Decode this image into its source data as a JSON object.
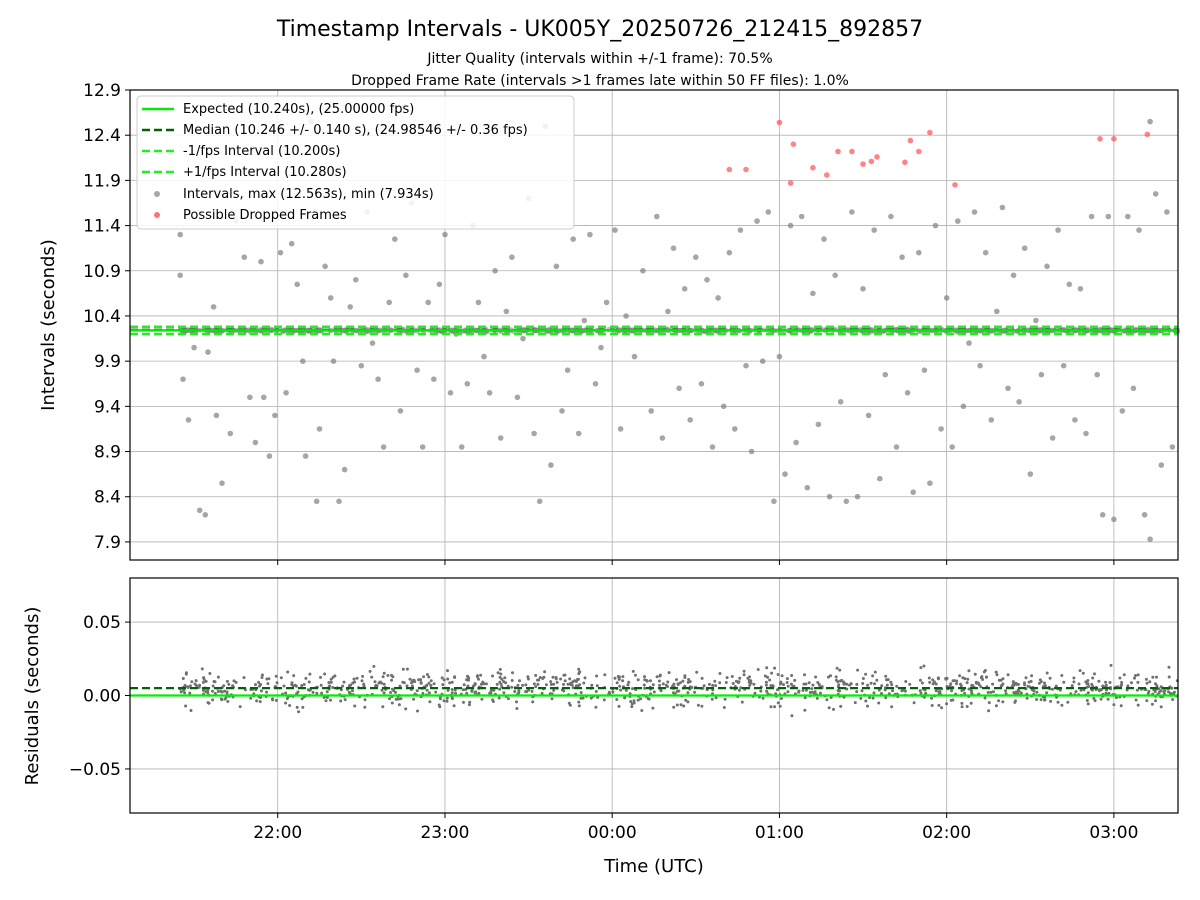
{
  "chart_data": [
    {
      "type": "scatter",
      "title": "Timestamp Intervals - UK005Y_20250726_212415_892857",
      "subtitles": [
        "Jitter Quality (intervals within +/-1 frame): 70.5%",
        "Dropped Frame Rate (intervals >1 frames late within 50 FF files): 1.0%"
      ],
      "ylabel": "Intervals (seconds)",
      "xlabel": "",
      "xlim": [
        "21:07",
        "03:23"
      ],
      "ylim": [
        7.7,
        12.9
      ],
      "yticks": [
        "7.9",
        "8.4",
        "8.9",
        "9.4",
        "9.9",
        "10.4",
        "10.9",
        "11.4",
        "11.9",
        "12.4",
        "12.9"
      ],
      "xticks": [
        "22:00",
        "23:00",
        "00:00",
        "01:00",
        "02:00",
        "03:00"
      ],
      "grid": true,
      "legend_position": "upper-left",
      "legend": [
        "Expected (10.240s), (25.00000 fps)",
        "Median (10.246 +/- 0.140 s), (24.98546 +/- 0.36 fps)",
        "-1/fps Interval (10.200s)",
        "+1/fps Interval (10.280s)",
        "Intervals, max (12.563s), min (7.934s)",
        "Possible Dropped Frames"
      ],
      "reference_lines": {
        "expected": 10.24,
        "median": 10.246,
        "minus_one_frame": 10.2,
        "plus_one_frame": 10.28
      },
      "series": [
        {
          "name": "Intervals, max (12.563s), min (7.934s)",
          "color": "#808080",
          "points": [
            {
              "x": "21:25",
              "y": 10.85
            },
            {
              "x": "21:25",
              "y": 11.3
            },
            {
              "x": "21:26",
              "y": 9.7
            },
            {
              "x": "21:28",
              "y": 9.25
            },
            {
              "x": "21:30",
              "y": 10.05
            },
            {
              "x": "21:32",
              "y": 8.25
            },
            {
              "x": "21:34",
              "y": 8.2
            },
            {
              "x": "21:35",
              "y": 10.0
            },
            {
              "x": "21:37",
              "y": 10.5
            },
            {
              "x": "21:38",
              "y": 9.3
            },
            {
              "x": "21:40",
              "y": 8.55
            },
            {
              "x": "21:43",
              "y": 9.1
            },
            {
              "x": "21:45",
              "y": 11.45
            },
            {
              "x": "21:48",
              "y": 11.05
            },
            {
              "x": "21:50",
              "y": 9.5
            },
            {
              "x": "21:52",
              "y": 9.0
            },
            {
              "x": "21:54",
              "y": 11.0
            },
            {
              "x": "21:55",
              "y": 9.5
            },
            {
              "x": "21:57",
              "y": 8.85
            },
            {
              "x": "21:59",
              "y": 9.3
            },
            {
              "x": "22:01",
              "y": 11.1
            },
            {
              "x": "22:03",
              "y": 9.55
            },
            {
              "x": "22:05",
              "y": 11.2
            },
            {
              "x": "22:07",
              "y": 10.75
            },
            {
              "x": "22:09",
              "y": 9.9
            },
            {
              "x": "22:10",
              "y": 8.85
            },
            {
              "x": "22:12",
              "y": 12.55
            },
            {
              "x": "22:14",
              "y": 8.35
            },
            {
              "x": "22:15",
              "y": 9.15
            },
            {
              "x": "22:17",
              "y": 10.95
            },
            {
              "x": "22:19",
              "y": 10.6
            },
            {
              "x": "22:20",
              "y": 9.9
            },
            {
              "x": "22:22",
              "y": 8.35
            },
            {
              "x": "22:24",
              "y": 8.7
            },
            {
              "x": "22:26",
              "y": 10.5
            },
            {
              "x": "22:28",
              "y": 10.8
            },
            {
              "x": "22:30",
              "y": 9.85
            },
            {
              "x": "22:32",
              "y": 11.55
            },
            {
              "x": "22:34",
              "y": 10.1
            },
            {
              "x": "22:36",
              "y": 9.7
            },
            {
              "x": "22:38",
              "y": 8.95
            },
            {
              "x": "22:40",
              "y": 10.55
            },
            {
              "x": "22:42",
              "y": 11.25
            },
            {
              "x": "22:44",
              "y": 9.35
            },
            {
              "x": "22:46",
              "y": 10.85
            },
            {
              "x": "22:48",
              "y": 11.65
            },
            {
              "x": "22:50",
              "y": 9.8
            },
            {
              "x": "22:52",
              "y": 8.95
            },
            {
              "x": "22:54",
              "y": 10.55
            },
            {
              "x": "22:56",
              "y": 9.7
            },
            {
              "x": "22:58",
              "y": 10.75
            },
            {
              "x": "23:00",
              "y": 11.3
            },
            {
              "x": "23:02",
              "y": 9.55
            },
            {
              "x": "23:04",
              "y": 10.2
            },
            {
              "x": "23:06",
              "y": 8.95
            },
            {
              "x": "23:08",
              "y": 9.65
            },
            {
              "x": "23:10",
              "y": 11.4
            },
            {
              "x": "23:12",
              "y": 10.55
            },
            {
              "x": "23:14",
              "y": 9.95
            },
            {
              "x": "23:16",
              "y": 9.55
            },
            {
              "x": "23:18",
              "y": 10.9
            },
            {
              "x": "23:20",
              "y": 9.05
            },
            {
              "x": "23:22",
              "y": 10.45
            },
            {
              "x": "23:24",
              "y": 11.05
            },
            {
              "x": "23:26",
              "y": 9.5
            },
            {
              "x": "23:28",
              "y": 10.15
            },
            {
              "x": "23:30",
              "y": 11.7
            },
            {
              "x": "23:32",
              "y": 9.1
            },
            {
              "x": "23:34",
              "y": 8.35
            },
            {
              "x": "23:36",
              "y": 12.5
            },
            {
              "x": "23:38",
              "y": 8.75
            },
            {
              "x": "23:40",
              "y": 10.95
            },
            {
              "x": "23:42",
              "y": 9.35
            },
            {
              "x": "23:44",
              "y": 9.8
            },
            {
              "x": "23:46",
              "y": 11.25
            },
            {
              "x": "23:48",
              "y": 9.1
            },
            {
              "x": "23:50",
              "y": 10.35
            },
            {
              "x": "23:52",
              "y": 11.3
            },
            {
              "x": "23:54",
              "y": 9.65
            },
            {
              "x": "23:56",
              "y": 10.05
            },
            {
              "x": "23:58",
              "y": 10.55
            },
            {
              "x": "00:01",
              "y": 11.35
            },
            {
              "x": "00:03",
              "y": 9.15
            },
            {
              "x": "00:05",
              "y": 10.4
            },
            {
              "x": "00:08",
              "y": 9.95
            },
            {
              "x": "00:11",
              "y": 10.9
            },
            {
              "x": "00:14",
              "y": 9.35
            },
            {
              "x": "00:16",
              "y": 11.5
            },
            {
              "x": "00:18",
              "y": 9.05
            },
            {
              "x": "00:20",
              "y": 10.45
            },
            {
              "x": "00:22",
              "y": 11.15
            },
            {
              "x": "00:24",
              "y": 9.6
            },
            {
              "x": "00:26",
              "y": 10.7
            },
            {
              "x": "00:28",
              "y": 9.25
            },
            {
              "x": "00:30",
              "y": 11.05
            },
            {
              "x": "00:32",
              "y": 9.65
            },
            {
              "x": "00:34",
              "y": 10.8
            },
            {
              "x": "00:36",
              "y": 8.95
            },
            {
              "x": "00:38",
              "y": 10.6
            },
            {
              "x": "00:40",
              "y": 9.4
            },
            {
              "x": "00:42",
              "y": 11.1
            },
            {
              "x": "00:44",
              "y": 9.15
            },
            {
              "x": "00:46",
              "y": 11.35
            },
            {
              "x": "00:48",
              "y": 9.85
            },
            {
              "x": "00:50",
              "y": 8.9
            },
            {
              "x": "00:52",
              "y": 11.45
            },
            {
              "x": "00:54",
              "y": 9.9
            },
            {
              "x": "00:56",
              "y": 11.55
            },
            {
              "x": "00:58",
              "y": 8.35
            },
            {
              "x": "01:00",
              "y": 9.95
            },
            {
              "x": "01:02",
              "y": 8.65
            },
            {
              "x": "01:04",
              "y": 11.4
            },
            {
              "x": "01:06",
              "y": 9.0
            },
            {
              "x": "01:08",
              "y": 11.5
            },
            {
              "x": "01:10",
              "y": 8.5
            },
            {
              "x": "01:12",
              "y": 10.65
            },
            {
              "x": "01:14",
              "y": 9.2
            },
            {
              "x": "01:16",
              "y": 11.25
            },
            {
              "x": "01:18",
              "y": 8.4
            },
            {
              "x": "01:20",
              "y": 10.85
            },
            {
              "x": "01:22",
              "y": 9.45
            },
            {
              "x": "01:24",
              "y": 8.35
            },
            {
              "x": "01:26",
              "y": 11.55
            },
            {
              "x": "01:28",
              "y": 8.4
            },
            {
              "x": "01:30",
              "y": 10.7
            },
            {
              "x": "01:32",
              "y": 9.3
            },
            {
              "x": "01:34",
              "y": 11.35
            },
            {
              "x": "01:36",
              "y": 8.6
            },
            {
              "x": "01:38",
              "y": 9.75
            },
            {
              "x": "01:40",
              "y": 11.5
            },
            {
              "x": "01:42",
              "y": 8.95
            },
            {
              "x": "01:44",
              "y": 11.05
            },
            {
              "x": "01:46",
              "y": 9.55
            },
            {
              "x": "01:48",
              "y": 8.45
            },
            {
              "x": "01:50",
              "y": 11.1
            },
            {
              "x": "01:52",
              "y": 9.8
            },
            {
              "x": "01:54",
              "y": 8.55
            },
            {
              "x": "01:56",
              "y": 11.4
            },
            {
              "x": "01:58",
              "y": 9.15
            },
            {
              "x": "02:00",
              "y": 10.6
            },
            {
              "x": "02:02",
              "y": 8.95
            },
            {
              "x": "02:04",
              "y": 11.45
            },
            {
              "x": "02:06",
              "y": 9.4
            },
            {
              "x": "02:08",
              "y": 10.1
            },
            {
              "x": "02:10",
              "y": 11.55
            },
            {
              "x": "02:12",
              "y": 9.85
            },
            {
              "x": "02:14",
              "y": 11.1
            },
            {
              "x": "02:16",
              "y": 9.25
            },
            {
              "x": "02:18",
              "y": 10.45
            },
            {
              "x": "02:20",
              "y": 11.6
            },
            {
              "x": "02:22",
              "y": 9.6
            },
            {
              "x": "02:24",
              "y": 10.85
            },
            {
              "x": "02:26",
              "y": 9.45
            },
            {
              "x": "02:28",
              "y": 11.15
            },
            {
              "x": "02:30",
              "y": 8.65
            },
            {
              "x": "02:32",
              "y": 10.35
            },
            {
              "x": "02:34",
              "y": 9.75
            },
            {
              "x": "02:36",
              "y": 10.95
            },
            {
              "x": "02:38",
              "y": 9.05
            },
            {
              "x": "02:40",
              "y": 11.35
            },
            {
              "x": "02:42",
              "y": 9.85
            },
            {
              "x": "02:44",
              "y": 10.75
            },
            {
              "x": "02:46",
              "y": 9.25
            },
            {
              "x": "02:48",
              "y": 10.7
            },
            {
              "x": "02:50",
              "y": 9.1
            },
            {
              "x": "02:52",
              "y": 11.5
            },
            {
              "x": "02:54",
              "y": 9.75
            },
            {
              "x": "02:56",
              "y": 8.2
            },
            {
              "x": "02:58",
              "y": 11.5
            },
            {
              "x": "03:00",
              "y": 8.15
            },
            {
              "x": "03:03",
              "y": 9.35
            },
            {
              "x": "03:05",
              "y": 11.5
            },
            {
              "x": "03:07",
              "y": 9.6
            },
            {
              "x": "03:09",
              "y": 11.35
            },
            {
              "x": "03:11",
              "y": 8.2
            },
            {
              "x": "03:13",
              "y": 12.55
            },
            {
              "x": "03:15",
              "y": 11.75
            },
            {
              "x": "03:17",
              "y": 8.75
            },
            {
              "x": "03:19",
              "y": 11.55
            },
            {
              "x": "03:21",
              "y": 8.95
            },
            {
              "x": "03:13",
              "y": 7.93
            }
          ]
        },
        {
          "name": "Possible Dropped Frames",
          "color": "#ff5050",
          "points": [
            {
              "x": "00:42",
              "y": 12.02
            },
            {
              "x": "00:48",
              "y": 12.02
            },
            {
              "x": "01:00",
              "y": 12.54
            },
            {
              "x": "01:04",
              "y": 11.87
            },
            {
              "x": "01:05",
              "y": 12.3
            },
            {
              "x": "01:12",
              "y": 12.04
            },
            {
              "x": "01:17",
              "y": 11.96
            },
            {
              "x": "01:21",
              "y": 12.22
            },
            {
              "x": "01:26",
              "y": 12.22
            },
            {
              "x": "01:30",
              "y": 12.08
            },
            {
              "x": "01:33",
              "y": 12.11
            },
            {
              "x": "01:35",
              "y": 12.16
            },
            {
              "x": "01:45",
              "y": 12.1
            },
            {
              "x": "01:47",
              "y": 12.34
            },
            {
              "x": "01:50",
              "y": 12.22
            },
            {
              "x": "01:54",
              "y": 12.43
            },
            {
              "x": "02:03",
              "y": 11.85
            },
            {
              "x": "02:55",
              "y": 12.36
            },
            {
              "x": "03:00",
              "y": 12.36
            },
            {
              "x": "03:12",
              "y": 12.41
            }
          ]
        }
      ]
    },
    {
      "type": "scatter",
      "title": "",
      "ylabel": "Residuals (seconds)",
      "xlabel": "Time (UTC)",
      "xlim": [
        "21:07",
        "03:23"
      ],
      "ylim": [
        -0.08,
        0.08
      ],
      "yticks": [
        "−0.05",
        "0.00",
        "0.05"
      ],
      "xticks": [
        "22:00",
        "23:00",
        "00:00",
        "01:00",
        "02:00",
        "03:00"
      ],
      "grid": true,
      "reference_lines": {
        "expected": 0.0,
        "median": 0.005
      },
      "series": [
        {
          "color": "#707070",
          "distribution": {
            "x_range": [
              "21:25",
              "03:23"
            ],
            "count": 1100,
            "mean": 0.005,
            "spread": 0.025,
            "range": [
              -0.075,
              0.078
            ]
          }
        }
      ]
    }
  ]
}
